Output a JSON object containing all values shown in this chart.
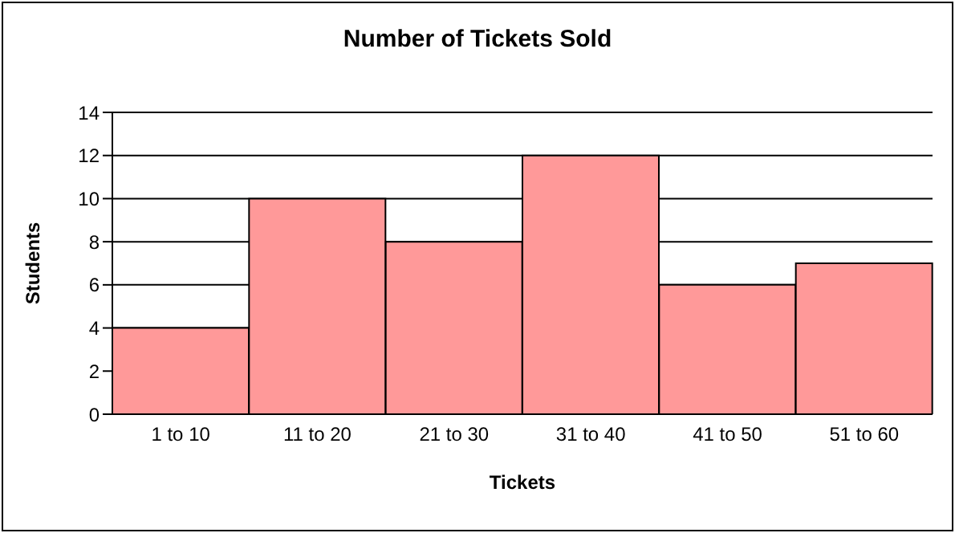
{
  "chart_data": {
    "type": "bar",
    "title": "Number of Tickets Sold",
    "xlabel": "Tickets",
    "ylabel": "Students",
    "categories": [
      "1 to 10",
      "11 to 20",
      "21 to 30",
      "31 to 40",
      "41 to 50",
      "51 to 60"
    ],
    "values": [
      4,
      10,
      8,
      12,
      6,
      7
    ],
    "color": "#ff9999",
    "ylim": [
      0,
      14
    ],
    "yticks": [
      0,
      2,
      4,
      6,
      8,
      10,
      12,
      14
    ],
    "grid": "y",
    "legend": false
  }
}
